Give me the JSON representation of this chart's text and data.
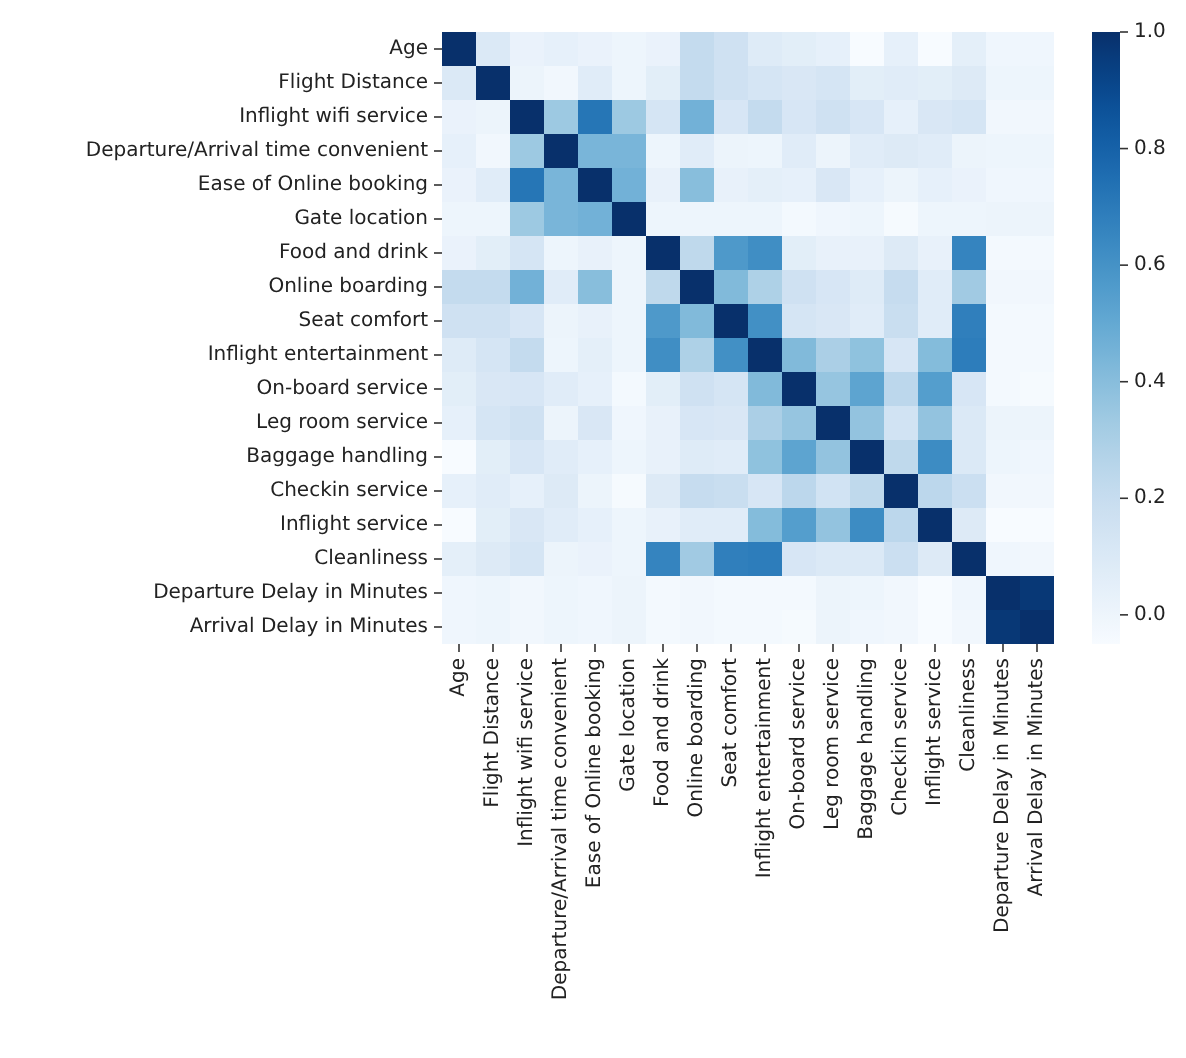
{
  "chart_data": {
    "type": "heatmap",
    "categories": [
      "Age",
      "Flight Distance",
      "Inflight wifi service",
      "Departure/Arrival time convenient",
      "Ease of Online booking",
      "Gate location",
      "Food and drink",
      "Online boarding",
      "Seat comfort",
      "Inflight entertainment",
      "On-board service",
      "Leg room service",
      "Baggage handling",
      "Checkin service",
      "Inflight service",
      "Cleanliness",
      "Departure Delay in Minutes",
      "Arrival Delay in Minutes"
    ],
    "y_categories": [
      "Age",
      "Flight Distance",
      "Inflight wifi service",
      "Departure/Arrival time convenient",
      "Ease of Online booking",
      "Gate location",
      "Food and drink",
      "Online boarding",
      "Seat comfort",
      "Inflight entertainment",
      "On-board service",
      "Leg room service",
      "Baggage handling",
      "Checkin service",
      "Inflight service",
      "Cleanliness",
      "Departure Delay in Minutes",
      "Arrival Delay in Minutes"
    ],
    "cells": [
      [
        1,
        0.1,
        0.02,
        0.04,
        0.02,
        0,
        0.02,
        0.21,
        0.16,
        0.08,
        0.06,
        0.04,
        -0.05,
        0.04,
        -0.05,
        0.05,
        -0.01,
        -0.01
      ],
      [
        0.1,
        1,
        0.01,
        -0.02,
        0.07,
        0,
        0.06,
        0.21,
        0.16,
        0.13,
        0.11,
        0.13,
        0.06,
        0.07,
        0.06,
        0.09,
        0,
        0
      ],
      [
        0.02,
        0.01,
        1,
        0.34,
        0.72,
        0.34,
        0.13,
        0.46,
        0.12,
        0.21,
        0.12,
        0.16,
        0.12,
        0.04,
        0.11,
        0.13,
        -0.02,
        -0.02
      ],
      [
        0.04,
        -0.02,
        0.34,
        1,
        0.44,
        0.44,
        0,
        0.07,
        0.01,
        0,
        0.07,
        0.01,
        0.07,
        0.09,
        0.07,
        0.01,
        0,
        0
      ],
      [
        0.02,
        0.07,
        0.72,
        0.44,
        1,
        0.46,
        0.03,
        0.4,
        0.03,
        0.05,
        0.04,
        0.11,
        0.04,
        0.01,
        0.04,
        0.02,
        -0.01,
        -0.01
      ],
      [
        0,
        0,
        0.34,
        0.44,
        0.46,
        1,
        0,
        0,
        0,
        0,
        -0.03,
        -0.01,
        0,
        -0.04,
        0,
        0,
        0.01,
        0.01
      ],
      [
        0.02,
        0.06,
        0.13,
        0,
        0.03,
        0,
        1,
        0.23,
        0.57,
        0.62,
        0.06,
        0.03,
        0.03,
        0.09,
        0.03,
        0.66,
        -0.03,
        -0.03
      ],
      [
        0.21,
        0.21,
        0.46,
        0.07,
        0.4,
        0,
        0.23,
        1,
        0.42,
        0.29,
        0.16,
        0.12,
        0.08,
        0.2,
        0.07,
        0.33,
        -0.02,
        -0.02
      ],
      [
        0.16,
        0.16,
        0.12,
        0.01,
        0.03,
        0,
        0.57,
        0.42,
        1,
        0.61,
        0.13,
        0.11,
        0.07,
        0.19,
        0.07,
        0.68,
        -0.03,
        -0.03
      ],
      [
        0.08,
        0.13,
        0.21,
        0,
        0.05,
        0,
        0.62,
        0.29,
        0.61,
        1,
        0.42,
        0.3,
        0.38,
        0.12,
        0.41,
        0.69,
        -0.03,
        -0.03
      ],
      [
        0.06,
        0.11,
        0.12,
        0.07,
        0.04,
        -0.03,
        0.06,
        0.16,
        0.13,
        0.42,
        1,
        0.36,
        0.52,
        0.24,
        0.55,
        0.12,
        -0.03,
        -0.04
      ],
      [
        0.04,
        0.13,
        0.16,
        0.01,
        0.11,
        -0.01,
        0.03,
        0.12,
        0.11,
        0.3,
        0.36,
        1,
        0.37,
        0.15,
        0.37,
        0.1,
        0.01,
        0.01
      ],
      [
        -0.05,
        0.06,
        0.12,
        0.07,
        0.04,
        0,
        0.03,
        0.08,
        0.07,
        0.38,
        0.52,
        0.37,
        1,
        0.23,
        0.63,
        0.1,
        0,
        -0.01
      ],
      [
        0.04,
        0.07,
        0.04,
        0.09,
        0.01,
        -0.04,
        0.09,
        0.2,
        0.19,
        0.12,
        0.24,
        0.15,
        0.23,
        1,
        0.24,
        0.18,
        -0.02,
        -0.02
      ],
      [
        -0.05,
        0.06,
        0.11,
        0.07,
        0.04,
        0,
        0.03,
        0.07,
        0.07,
        0.41,
        0.55,
        0.37,
        0.63,
        0.24,
        1,
        0.09,
        -0.05,
        -0.05
      ],
      [
        0.05,
        0.09,
        0.13,
        0.01,
        0.02,
        0,
        0.66,
        0.33,
        0.68,
        0.69,
        0.12,
        0.1,
        0.1,
        0.18,
        0.09,
        1,
        -0.01,
        -0.02
      ],
      [
        -0.01,
        0,
        -0.02,
        0,
        -0.01,
        0.01,
        -0.03,
        -0.02,
        -0.03,
        -0.03,
        -0.03,
        0.01,
        0,
        -0.02,
        -0.05,
        -0.01,
        1,
        0.97
      ],
      [
        -0.01,
        0,
        -0.02,
        0,
        -0.01,
        0.01,
        -0.03,
        -0.02,
        -0.03,
        -0.03,
        -0.04,
        0.01,
        -0.01,
        -0.02,
        -0.05,
        -0.02,
        0.97,
        1
      ]
    ],
    "clim": [
      -0.05,
      1.0
    ],
    "cticks": [
      {
        "value": 0,
        "label": "0.0"
      },
      {
        "value": 0.2,
        "label": "0.2"
      },
      {
        "value": 0.4,
        "label": "0.4"
      },
      {
        "value": 0.6,
        "label": "0.6"
      },
      {
        "value": 0.8,
        "label": "0.8"
      },
      {
        "value": 1,
        "label": "1.0"
      }
    ]
  }
}
